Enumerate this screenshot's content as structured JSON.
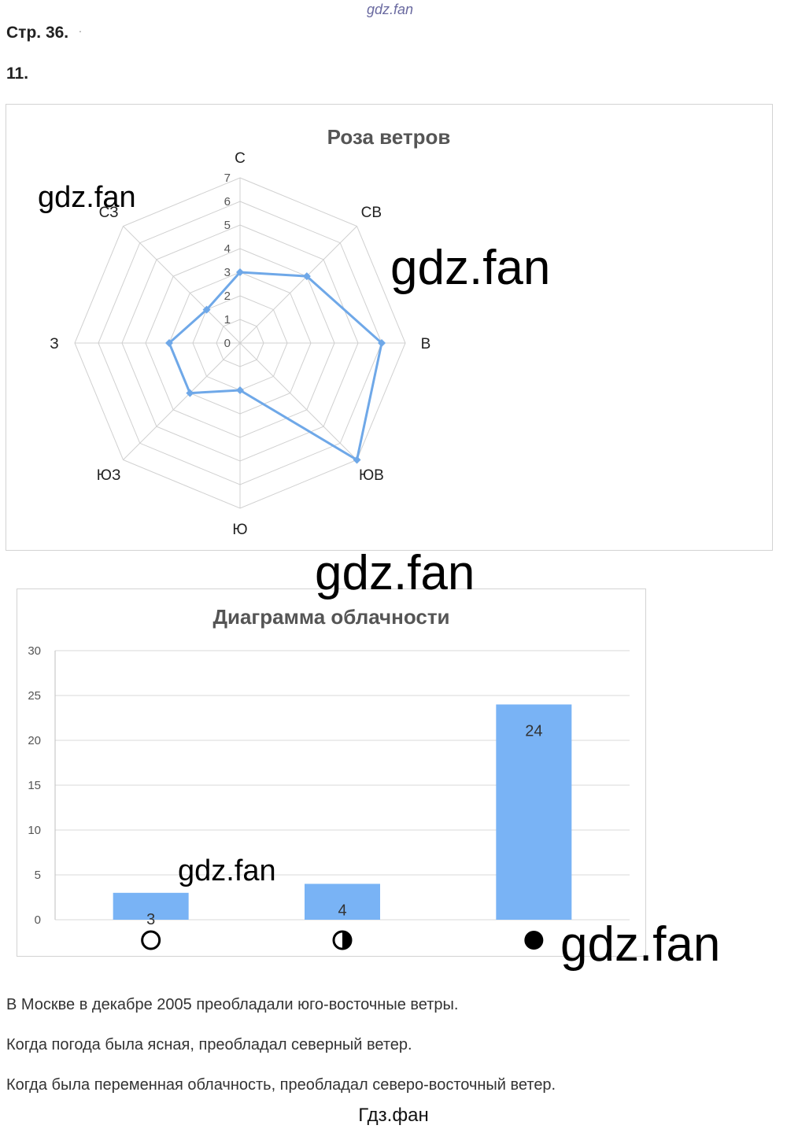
{
  "header": {
    "watermark_top": "gdz.fan",
    "page_ref": "Стр. 36.",
    "page_ref_mark": ".",
    "task_number": "11."
  },
  "watermarks": [
    "gdz.fan",
    "gdz.fan",
    "gdz.fan",
    "gdz.fan",
    "gdz.fan"
  ],
  "chart_data": [
    {
      "type": "radar",
      "title": "Роза ветров",
      "categories": [
        "С",
        "СВ",
        "В",
        "ЮВ",
        "Ю",
        "ЮЗ",
        "З",
        "СЗ"
      ],
      "values": [
        3,
        4,
        6,
        7,
        2,
        3,
        3,
        2
      ],
      "scale_ticks": [
        "0",
        "1",
        "2",
        "3",
        "4",
        "5",
        "6",
        "7"
      ],
      "rmax": 7,
      "series_color": "#6fa8e8",
      "grid_color": "#d0d0d0"
    },
    {
      "type": "bar",
      "title": "Диаграмма облачности",
      "categories": [
        "ясно",
        "переменная облачность",
        "пасмурно"
      ],
      "category_icons": [
        "empty-circle-icon",
        "half-filled-circle-icon",
        "filled-circle-icon"
      ],
      "values": [
        3,
        4,
        24
      ],
      "data_labels": [
        "3",
        "4",
        "24"
      ],
      "y_ticks": [
        "0",
        "5",
        "10",
        "15",
        "20",
        "25",
        "30"
      ],
      "ylim": [
        0,
        30
      ],
      "bar_color": "#79b3f5",
      "grid_color": "#d9d9d9"
    }
  ],
  "text": {
    "line1": "В Москве в декабре 2005 преобладали юго-восточные ветры.",
    "line2": "Когда погода была ясная, преобладал северный ветер.",
    "line3": "Когда была переменная облачность, преобладал северо-восточный ветер."
  },
  "footer": "Гдз.фан"
}
